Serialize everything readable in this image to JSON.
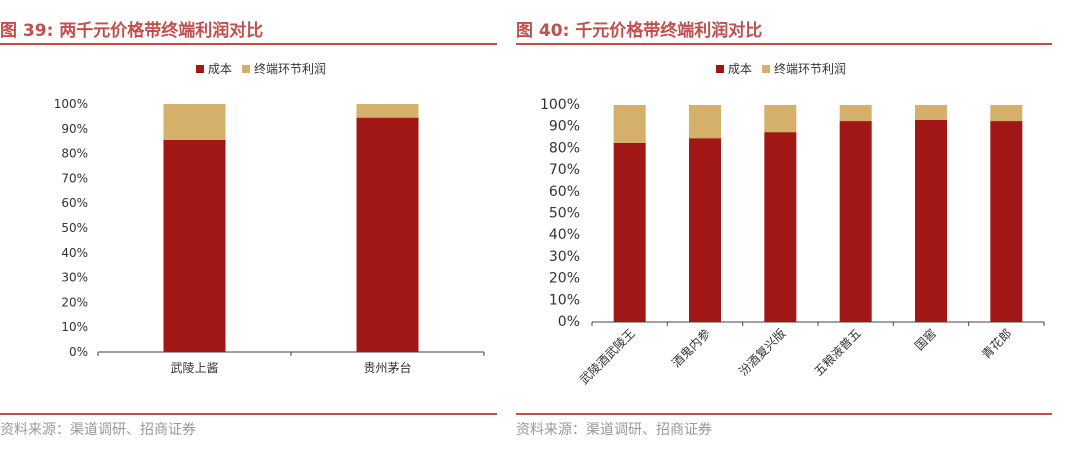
{
  "colors": {
    "cost": "#A11715",
    "profit": "#D4B06A",
    "accent": "#C0504D",
    "axis": "#333333"
  },
  "left": {
    "title": "图 39:  两千元价格带终端利润对比",
    "source": "资料来源：渠道调研、招商证券",
    "legend": [
      {
        "label": "成本",
        "color": "#A11715"
      },
      {
        "label": "终端环节利润",
        "color": "#D4B06A"
      }
    ]
  },
  "right": {
    "title": "图 40:  千元价格带终端利润对比",
    "source": "资料来源：渠道调研、招商证券",
    "legend": [
      {
        "label": "成本",
        "color": "#A11715"
      },
      {
        "label": "终端环节利润",
        "color": "#D4B06A"
      }
    ]
  },
  "chart_data": [
    {
      "type": "bar",
      "stacked": true,
      "title": "两千元价格带终端利润对比",
      "categories": [
        "武陵上酱",
        "贵州茅台"
      ],
      "series": [
        {
          "name": "成本",
          "values": [
            85.5,
            94.5
          ]
        },
        {
          "name": "终端环节利润",
          "values": [
            14.5,
            5.5
          ]
        }
      ],
      "ylim": [
        0,
        100
      ],
      "yticks": [
        "0%",
        "10%",
        "20%",
        "30%",
        "40%",
        "50%",
        "60%",
        "70%",
        "80%",
        "90%",
        "100%"
      ],
      "legend_position": "top",
      "grid": false
    },
    {
      "type": "bar",
      "stacked": true,
      "title": "千元价格带终端利润对比",
      "categories": [
        "武陵酒武陵王",
        "酒鬼内参",
        "汾酒复兴版",
        "五粮液普五",
        "国窖",
        "青花郎"
      ],
      "series": [
        {
          "name": "成本",
          "values": [
            82.5,
            84.7,
            87.5,
            92.6,
            93.1,
            92.6
          ]
        },
        {
          "name": "终端环节利润",
          "values": [
            17.5,
            15.3,
            12.5,
            7.4,
            6.9,
            7.4
          ]
        }
      ],
      "ylim": [
        0,
        100
      ],
      "yticks": [
        "0%",
        "10%",
        "20%",
        "30%",
        "40%",
        "50%",
        "60%",
        "70%",
        "80%",
        "90%",
        "100%"
      ],
      "legend_position": "top",
      "grid": false
    }
  ]
}
